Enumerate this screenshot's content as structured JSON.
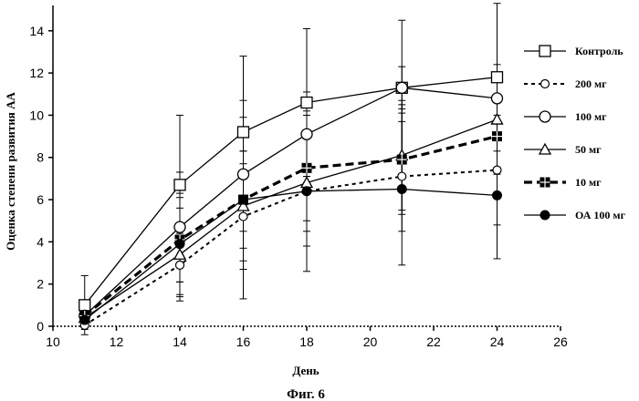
{
  "chart_data": {
    "type": "line",
    "xlabel": "День",
    "ylabel": "Оценка степени развития АА",
    "caption": "Фиг. 6",
    "xlim": [
      10,
      26
    ],
    "ylim": [
      0,
      15.2
    ],
    "xticks": [
      10,
      12,
      14,
      16,
      18,
      20,
      22,
      24,
      26
    ],
    "yticks": [
      0,
      2,
      4,
      6,
      8,
      10,
      12,
      14
    ],
    "grid": false,
    "legend_position": "right",
    "series": [
      {
        "name": "Контроль",
        "line": "solid",
        "marker": "square-open",
        "x": [
          11,
          14,
          16,
          18,
          21,
          24
        ],
        "y": [
          1.0,
          6.7,
          9.2,
          10.6,
          11.3,
          11.8
        ],
        "err": [
          1.4,
          3.3,
          3.6,
          3.5,
          3.2,
          3.5
        ]
      },
      {
        "name": "200 мг",
        "line": "dotted",
        "marker": "circle-open-small",
        "x": [
          11,
          14,
          16,
          18,
          21,
          24
        ],
        "y": [
          0.05,
          2.9,
          5.2,
          6.4,
          7.1,
          7.4
        ],
        "err": [
          0.2,
          1.5,
          2.5,
          2.6,
          2.6,
          2.6
        ]
      },
      {
        "name": "100 мг",
        "line": "solid",
        "marker": "circle-open",
        "x": [
          11,
          14,
          16,
          18,
          21,
          24
        ],
        "y": [
          0.5,
          4.7,
          7.2,
          9.1,
          11.3,
          10.8
        ],
        "err": [
          0.4,
          2.6,
          2.7,
          2.0,
          1.0,
          1.2
        ]
      },
      {
        "name": "50 мг",
        "line": "solid",
        "marker": "triangle-open",
        "x": [
          11,
          14,
          16,
          18,
          21,
          24
        ],
        "y": [
          0.4,
          3.4,
          5.7,
          6.8,
          8.1,
          9.8
        ],
        "err": [
          0.3,
          2.2,
          2.6,
          2.3,
          2.6,
          2.6
        ]
      },
      {
        "name": "10 мг",
        "line": "dashed",
        "marker": "square-filled-cross",
        "x": [
          11,
          14,
          16,
          18,
          21,
          24
        ],
        "y": [
          0.5,
          4.1,
          6.0,
          7.5,
          7.9,
          9.0
        ],
        "err": [
          0.4,
          2.0,
          2.3,
          2.5,
          2.6,
          2.8
        ]
      },
      {
        "name": "ОА 100 мг",
        "line": "solid",
        "marker": "circle-filled",
        "x": [
          11,
          14,
          16,
          18,
          21,
          24
        ],
        "y": [
          0.3,
          3.9,
          6.0,
          6.4,
          6.5,
          6.2
        ],
        "err": [
          0.2,
          2.4,
          4.7,
          3.8,
          3.6,
          3.0
        ]
      }
    ]
  }
}
